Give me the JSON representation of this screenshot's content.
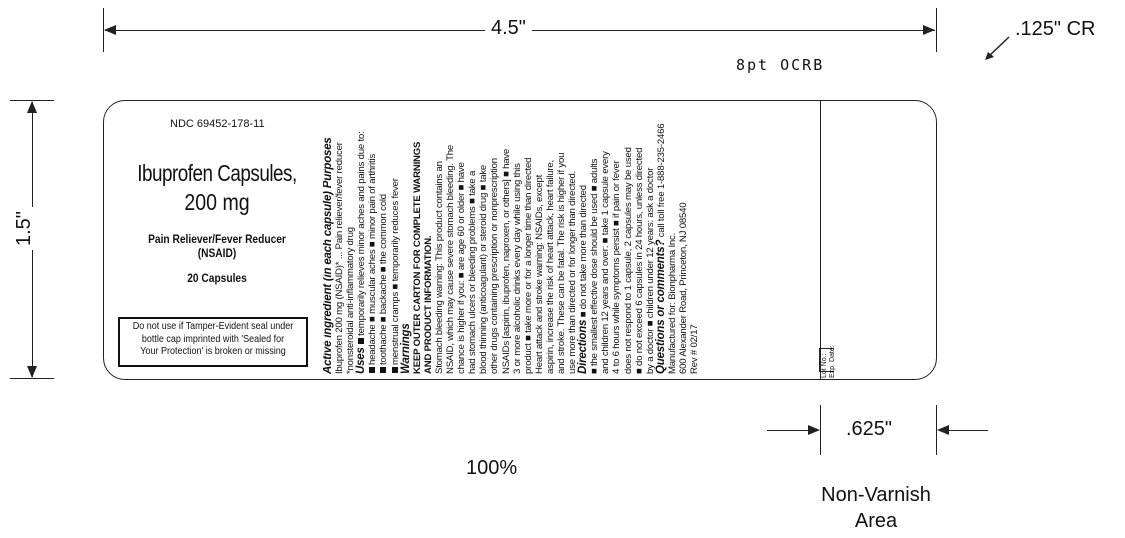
{
  "dimensions": {
    "width_label": "4.5\"",
    "height_label": "1.5\"",
    "corner_label": ".125\" CR",
    "nonvarnish_width_label": ".625\"",
    "font_note": "8pt OCRB",
    "scale_label": "100%",
    "nonvarnish_caption_line1": "Non-Varnish",
    "nonvarnish_caption_line2": "Area"
  },
  "label": {
    "ndc": "NDC 69452-178-11",
    "product_name": "Ibuprofen Capsules,",
    "strength": "200 mg",
    "subtitle": "Pain Reliever/Fever Reducer (NSAID)",
    "count": "20 Capsules",
    "tamper_line1": "Do not use if Tamper-Evident seal under",
    "tamper_line2": "bottle cap imprinted with 'Sealed for",
    "tamper_line3": "Your Protection' is broken or missing"
  },
  "drug_facts": {
    "active_heading": "Active ingredient (in each capsule) Purposes",
    "active_line1": "Ibuprofen 200 mg (NSAID)* ... Pain reliever/fever reducer",
    "active_line2": "*nonsteroidal anti-inflammatory drug",
    "uses_heading": "Uses",
    "uses_line1": "temporarily relieves minor aches and pains due to:",
    "uses_line2": "headache ■ muscular aches ■ minor pain of arthritis",
    "uses_line3": "toothache ■ backache ■ the common cold",
    "uses_line4": "menstrual cramps ■ temporarily reduces fever",
    "warnings_heading": "Warnings",
    "warnings_line1": "KEEP OUTER CARTON FOR COMPLETE WARNINGS",
    "warnings_line2": "AND PRODUCT INFORMATION.",
    "warnings_line3": "Stomach bleeding warning: This product contains an",
    "warnings_line4": "NSAID, which may cause severe stomach bleeding. The",
    "warnings_line5": "chance is higher if you: ■ are age 60 or older ■ have",
    "warnings_line6": "had stomach ulcers or bleeding problems ■ take a",
    "warnings_line7": "blood thinning (anticoagulant) or steroid drug ■ take",
    "warnings_line8": "other drugs containing prescription or nonprescription",
    "warnings_line9": "NSAIDs [aspirin, ibuprofen, naproxen, or others] ■ have",
    "warnings_line10": "3 or more alcoholic drinks every day while using this",
    "warnings_line11": "product ■ take more or for a longer time than directed",
    "warnings_line12": "Heart attack and stroke warning: NSAIDs, except",
    "warnings_line13": "aspirin, increase the risk of heart attack, heart failure,",
    "warnings_line14": "and stroke. These can be fatal. The risk is higher if you",
    "warnings_line15": "use more than directed or for longer than directed.",
    "directions_heading": "Directions",
    "directions_line1": "■ do not take more than directed",
    "directions_line2": "■ the smallest effective dose should be used ■ adults",
    "directions_line3": "and children 12 years and over: ■ take 1 capsule every",
    "directions_line4": "4 to 6 hours while symptoms persist ■ if pain or fever",
    "directions_line5": "does not respond to 1 capsule, 2 capsules may be used",
    "directions_line6": "■ do not exceed 6 capsules in 24 hours, unless directed",
    "directions_line7": "by a doctor ■ children under 12 years: ask a doctor",
    "questions_heading": "Questions or comments?",
    "questions_text": "call toll free 1-888-235-2466",
    "mfr_line1": "Manufactured for: Bionpharma Inc.",
    "mfr_line2": "600 Alexander Road, Princeton, NJ 08540",
    "rev": "Rev # 02/17",
    "lot": "Lot No.:",
    "exp": "Exp. Date:"
  }
}
